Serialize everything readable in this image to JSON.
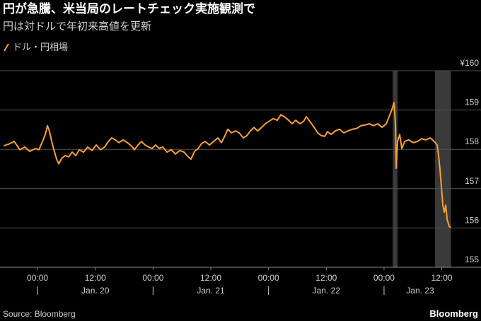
{
  "chart_data": {
    "type": "line",
    "title": "円が急騰、米当局のレートチェック実施観測で",
    "subtitle": "円は対ドルで年初来高値を更新",
    "source": "Source: Bloomberg",
    "brand": "Bloomberg",
    "x": [
      -7.05,
      -6.03,
      -4.85,
      -3.67,
      -2.65,
      -1.62,
      -0.44,
      0.29,
      1.03,
      1.62,
      2.06,
      2.5,
      2.94,
      3.53,
      3.97,
      4.41,
      5.0,
      5.73,
      6.47,
      7.2,
      7.94,
      8.67,
      9.55,
      10.44,
      11.32,
      12.2,
      13.08,
      13.96,
      14.7,
      15.43,
      16.17,
      16.9,
      17.78,
      18.67,
      19.55,
      20.14,
      20.87,
      21.6,
      22.34,
      23.07,
      23.81,
      24.54,
      25.28,
      26.01,
      26.9,
      27.78,
      28.66,
      29.54,
      30.42,
      31.31,
      31.89,
      32.63,
      33.36,
      34.1,
      34.83,
      35.71,
      36.6,
      37.48,
      38.21,
      38.95,
      39.54,
      40.27,
      41.15,
      41.89,
      42.77,
      43.5,
      44.24,
      44.97,
      45.71,
      46.59,
      47.32,
      48.06,
      48.94,
      49.82,
      50.56,
      51.29,
      52.17,
      52.91,
      53.64,
      54.53,
      55.26,
      55.85,
      56.58,
      57.47,
      58.2,
      58.94,
      59.67,
      60.26,
      60.99,
      61.88,
      62.76,
      63.64,
      64.52,
      65.4,
      66.28,
      67.17,
      68.05,
      68.93,
      69.81,
      70.69,
      71.58,
      72.46,
      73.05,
      73.63,
      74.07,
      74.37,
      74.52,
      74.81,
      75.25,
      75.69,
      76.28,
      77.16,
      78.04,
      78.93,
      79.81,
      80.69,
      81.57,
      82.45,
      83.04,
      83.33,
      83.63,
      83.92,
      84.22,
      84.51,
      84.81,
      85.1,
      85.54,
      85.84
    ],
    "series": [
      {
        "name": "ドル・円相場",
        "color": "#f7a035",
        "values": [
          158.09,
          158.13,
          158.2,
          157.99,
          158.06,
          157.95,
          158.02,
          157.99,
          158.2,
          158.38,
          158.6,
          158.45,
          158.2,
          157.93,
          157.75,
          157.63,
          157.77,
          157.84,
          157.81,
          157.93,
          157.84,
          157.99,
          157.93,
          158.06,
          157.97,
          158.11,
          157.99,
          158.06,
          158.2,
          158.29,
          158.24,
          158.17,
          158.24,
          158.17,
          158.08,
          157.99,
          158.11,
          158.2,
          158.11,
          158.06,
          158.02,
          158.11,
          158.02,
          158.06,
          157.93,
          157.99,
          157.88,
          157.97,
          157.93,
          157.81,
          157.75,
          157.95,
          158.02,
          158.15,
          158.2,
          158.11,
          158.2,
          158.29,
          158.17,
          158.35,
          158.51,
          158.42,
          158.47,
          158.42,
          158.29,
          158.35,
          158.47,
          158.56,
          158.47,
          158.56,
          158.65,
          158.71,
          158.78,
          158.74,
          158.88,
          158.83,
          158.74,
          158.65,
          158.74,
          158.65,
          158.71,
          158.83,
          158.71,
          158.56,
          158.42,
          158.35,
          158.33,
          158.45,
          158.38,
          158.47,
          158.51,
          158.42,
          158.47,
          158.51,
          158.53,
          158.6,
          158.62,
          158.65,
          158.6,
          158.65,
          158.56,
          158.65,
          158.83,
          159.01,
          159.19,
          158.65,
          157.52,
          158.2,
          158.38,
          158.02,
          158.2,
          158.24,
          158.17,
          158.2,
          158.27,
          158.24,
          158.29,
          158.2,
          158.11,
          157.84,
          157.48,
          157.03,
          156.58,
          156.4,
          156.58,
          156.22,
          156.04,
          156.01
        ]
      }
    ],
    "xlim": [
      -7.8,
      87
    ],
    "xticks": [
      {
        "value": 0,
        "label": "00:00"
      },
      {
        "value": 12,
        "label": "12:00"
      },
      {
        "value": 24,
        "label": "00:00"
      },
      {
        "value": 36,
        "label": "12:00"
      },
      {
        "value": 48,
        "label": "00:00"
      },
      {
        "value": 60,
        "label": "12:00"
      },
      {
        "value": 72,
        "label": "00:00"
      },
      {
        "value": 84,
        "label": "12:00"
      }
    ],
    "date_labels": [
      {
        "value": 0,
        "label": "Jan. 20"
      },
      {
        "value": 24,
        "label": "Jan. 21"
      },
      {
        "value": 48,
        "label": "Jan. 22"
      },
      {
        "value": 72,
        "label": "Jan. 23"
      }
    ],
    "ylim": [
      155,
      160
    ],
    "yticks": [
      {
        "value": 160,
        "label": "¥160"
      },
      159,
      158,
      157,
      156,
      155
    ],
    "shaded": [
      [
        73.8,
        74.8
      ],
      [
        82.6,
        85.9
      ]
    ],
    "shade_color": "#3a3a3a",
    "grid": true
  }
}
